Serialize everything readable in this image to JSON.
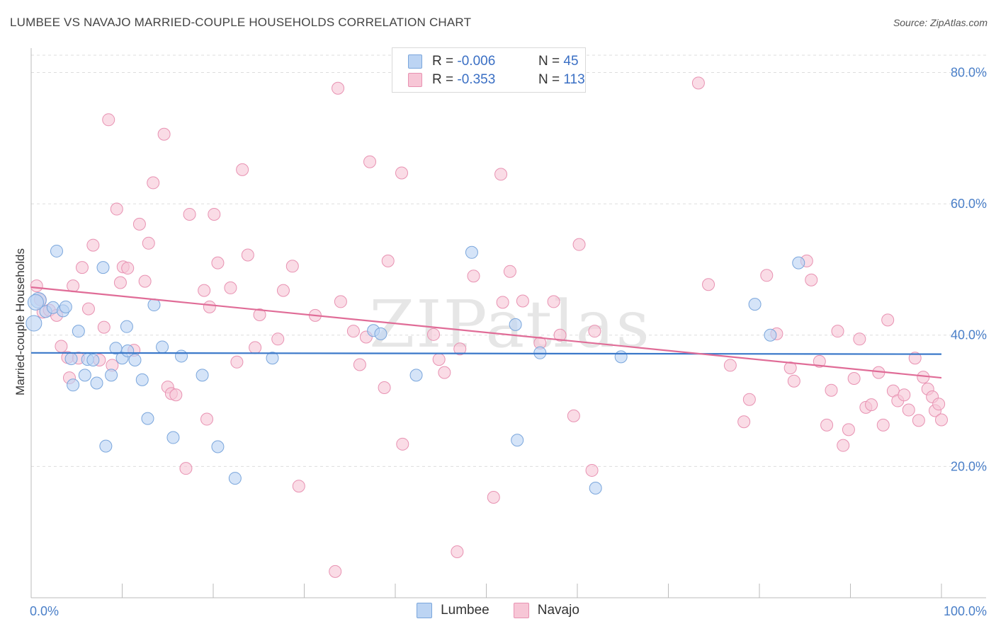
{
  "title": "LUMBEE VS NAVAJO MARRIED-COUPLE HOUSEHOLDS CORRELATION CHART",
  "source": "Source: ZipAtlas.com",
  "watermark": "ZIPatlas",
  "legend": {
    "rows": [
      {
        "r_label": "R =",
        "r_value": "-0.006",
        "n_label": "N =",
        "n_value": "45"
      },
      {
        "r_label": "R =",
        "r_value": "-0.353",
        "n_label": "N =",
        "n_value": "113"
      }
    ]
  },
  "chart_data": {
    "type": "scatter",
    "title": "LUMBEE VS NAVAJO MARRIED-COUPLE HOUSEHOLDS CORRELATION CHART",
    "xlabel": "",
    "ylabel": "Married-couple Households",
    "xlim": [
      0,
      100
    ],
    "ylim": [
      0,
      83.5
    ],
    "x_tick_labels": [
      "0.0%",
      "100.0%"
    ],
    "y_ticks": [
      20,
      40,
      60,
      80
    ],
    "y_tick_labels": [
      "20.0%",
      "40.0%",
      "60.0%",
      "80.0%"
    ],
    "grid": true,
    "legend_position": "top-center",
    "colors": {
      "lumbee_fill": "#bcd4f3",
      "lumbee_stroke": "#7aa6dc",
      "lumbee_line": "#3a78c9",
      "navajo_fill": "#f7c6d6",
      "navajo_stroke": "#e892b2",
      "navajo_line": "#e06c97"
    },
    "series": [
      {
        "name": "Lumbee",
        "trend": {
          "x": [
            0,
            100
          ],
          "y": [
            37.3,
            37.1
          ]
        },
        "points": [
          [
            0.3,
            41.8
          ],
          [
            0.8,
            45.3
          ],
          [
            1.6,
            43.6
          ],
          [
            2.4,
            44.2
          ],
          [
            2.8,
            52.8
          ],
          [
            3.5,
            43.7
          ],
          [
            3.8,
            44.3
          ],
          [
            5.2,
            40.6
          ],
          [
            4.4,
            36.4
          ],
          [
            4.6,
            32.4
          ],
          [
            5.9,
            33.9
          ],
          [
            6.2,
            36.3
          ],
          [
            6.8,
            36.2
          ],
          [
            7.2,
            32.7
          ],
          [
            7.9,
            50.3
          ],
          [
            8.2,
            23.1
          ],
          [
            8.8,
            33.9
          ],
          [
            9.3,
            38.0
          ],
          [
            10.0,
            36.5
          ],
          [
            10.5,
            41.3
          ],
          [
            10.6,
            37.6
          ],
          [
            11.4,
            36.2
          ],
          [
            12.2,
            33.2
          ],
          [
            12.8,
            27.3
          ],
          [
            13.5,
            44.6
          ],
          [
            14.4,
            38.2
          ],
          [
            15.6,
            24.4
          ],
          [
            16.5,
            36.8
          ],
          [
            18.8,
            33.9
          ],
          [
            20.5,
            23.0
          ],
          [
            22.4,
            18.2
          ],
          [
            26.5,
            36.5
          ],
          [
            37.6,
            40.7
          ],
          [
            38.4,
            40.2
          ],
          [
            42.3,
            33.9
          ],
          [
            48.4,
            52.6
          ],
          [
            53.2,
            41.6
          ],
          [
            53.4,
            24.0
          ],
          [
            55.9,
            37.3
          ],
          [
            62.0,
            16.7
          ],
          [
            64.8,
            36.7
          ],
          [
            79.5,
            44.7
          ],
          [
            81.2,
            40.0
          ],
          [
            84.3,
            51.0
          ],
          [
            0.5,
            45.0
          ]
        ]
      },
      {
        "name": "Navajo",
        "trend": {
          "x": [
            0,
            100
          ],
          "y": [
            47.3,
            33.5
          ]
        },
        "points": [
          [
            0.6,
            47.5
          ],
          [
            1.0,
            45.4
          ],
          [
            1.3,
            43.5
          ],
          [
            2.0,
            43.8
          ],
          [
            2.8,
            43.0
          ],
          [
            3.3,
            38.3
          ],
          [
            4.0,
            36.6
          ],
          [
            4.2,
            33.5
          ],
          [
            4.6,
            47.5
          ],
          [
            5.2,
            36.5
          ],
          [
            5.6,
            50.3
          ],
          [
            6.3,
            44.0
          ],
          [
            6.8,
            53.7
          ],
          [
            7.5,
            36.2
          ],
          [
            8.0,
            41.2
          ],
          [
            8.5,
            72.8
          ],
          [
            8.9,
            35.4
          ],
          [
            9.4,
            59.2
          ],
          [
            9.8,
            48.0
          ],
          [
            10.1,
            50.4
          ],
          [
            10.6,
            50.2
          ],
          [
            11.3,
            37.7
          ],
          [
            11.9,
            56.9
          ],
          [
            12.5,
            48.2
          ],
          [
            12.9,
            54.0
          ],
          [
            13.4,
            63.2
          ],
          [
            14.6,
            70.6
          ],
          [
            15.0,
            32.1
          ],
          [
            15.4,
            31.1
          ],
          [
            15.9,
            30.9
          ],
          [
            17.0,
            19.7
          ],
          [
            17.4,
            58.4
          ],
          [
            19.0,
            46.8
          ],
          [
            19.3,
            27.2
          ],
          [
            19.6,
            44.3
          ],
          [
            20.1,
            58.4
          ],
          [
            20.5,
            51.0
          ],
          [
            21.9,
            47.2
          ],
          [
            22.6,
            35.9
          ],
          [
            23.2,
            65.2
          ],
          [
            23.8,
            52.2
          ],
          [
            24.6,
            38.1
          ],
          [
            25.1,
            43.1
          ],
          [
            27.1,
            39.4
          ],
          [
            27.7,
            46.8
          ],
          [
            28.7,
            50.5
          ],
          [
            29.4,
            17.0
          ],
          [
            31.2,
            43.0
          ],
          [
            33.4,
            4.0
          ],
          [
            33.7,
            77.6
          ],
          [
            34.0,
            45.1
          ],
          [
            35.4,
            40.6
          ],
          [
            36.1,
            35.5
          ],
          [
            36.8,
            39.7
          ],
          [
            37.2,
            66.4
          ],
          [
            38.8,
            32.0
          ],
          [
            39.2,
            51.3
          ],
          [
            40.7,
            64.7
          ],
          [
            40.8,
            23.4
          ],
          [
            44.2,
            40.1
          ],
          [
            44.8,
            36.3
          ],
          [
            45.4,
            34.3
          ],
          [
            46.8,
            7.0
          ],
          [
            47.1,
            37.9
          ],
          [
            48.6,
            49.0
          ],
          [
            50.8,
            15.3
          ],
          [
            51.6,
            64.5
          ],
          [
            51.8,
            45.0
          ],
          [
            52.6,
            49.7
          ],
          [
            54.0,
            45.2
          ],
          [
            55.9,
            38.8
          ],
          [
            57.4,
            45.1
          ],
          [
            58.1,
            40.0
          ],
          [
            59.6,
            27.7
          ],
          [
            60.2,
            53.8
          ],
          [
            61.6,
            19.4
          ],
          [
            61.9,
            40.6
          ],
          [
            73.3,
            78.4
          ],
          [
            74.4,
            47.7
          ],
          [
            76.8,
            35.4
          ],
          [
            78.3,
            26.8
          ],
          [
            78.9,
            30.2
          ],
          [
            80.8,
            49.1
          ],
          [
            81.9,
            40.2
          ],
          [
            83.4,
            35.0
          ],
          [
            83.8,
            33.0
          ],
          [
            85.2,
            51.3
          ],
          [
            85.7,
            48.4
          ],
          [
            86.6,
            36.0
          ],
          [
            87.4,
            26.3
          ],
          [
            87.9,
            31.6
          ],
          [
            88.6,
            40.6
          ],
          [
            89.2,
            23.2
          ],
          [
            89.8,
            25.6
          ],
          [
            90.4,
            33.4
          ],
          [
            91.0,
            39.4
          ],
          [
            91.7,
            29.0
          ],
          [
            92.3,
            29.4
          ],
          [
            93.1,
            34.3
          ],
          [
            93.6,
            26.3
          ],
          [
            94.1,
            42.3
          ],
          [
            94.7,
            31.5
          ],
          [
            95.2,
            30.0
          ],
          [
            95.9,
            30.9
          ],
          [
            96.4,
            28.6
          ],
          [
            97.1,
            36.5
          ],
          [
            97.5,
            27.0
          ],
          [
            98.0,
            33.6
          ],
          [
            98.5,
            31.8
          ],
          [
            99.0,
            30.6
          ],
          [
            99.3,
            28.5
          ],
          [
            99.7,
            29.5
          ],
          [
            100.0,
            27.1
          ]
        ]
      }
    ]
  }
}
